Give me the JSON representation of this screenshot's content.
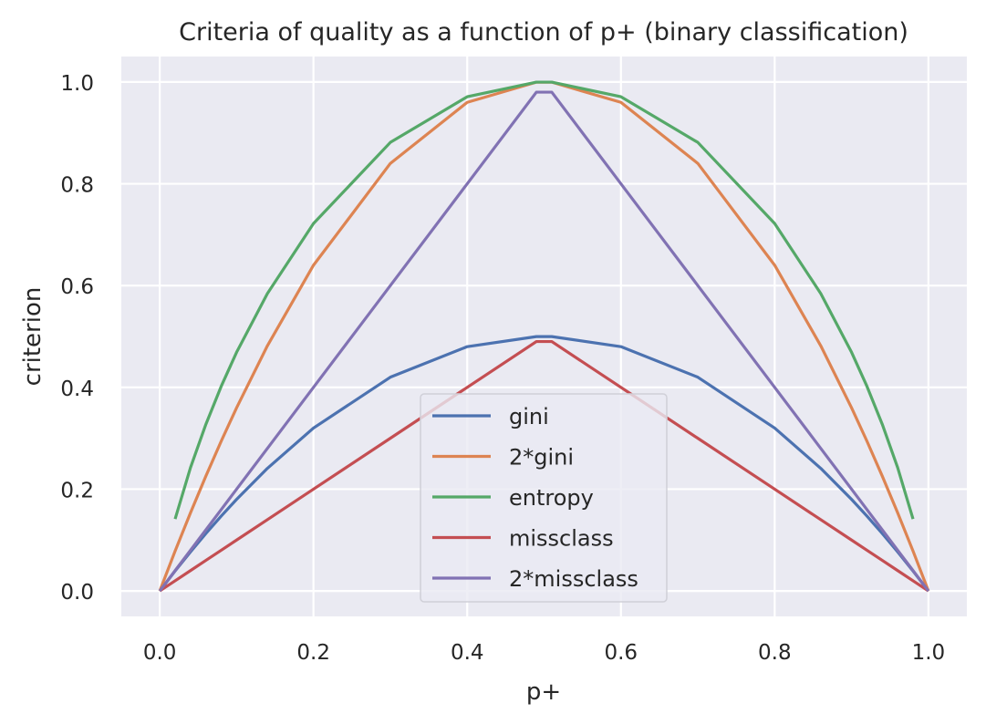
{
  "chart_data": {
    "type": "line",
    "title": "Criteria of quality as a function of p+ (binary classification)",
    "xlabel": "p+",
    "ylabel": "criterion",
    "xlim": [
      -0.05,
      1.05
    ],
    "ylim": [
      -0.05,
      1.05
    ],
    "xticks": [
      "0.0",
      "0.2",
      "0.4",
      "0.6",
      "0.8",
      "1.0"
    ],
    "yticks": [
      "0.0",
      "0.2",
      "0.4",
      "0.6",
      "0.8",
      "1.0"
    ],
    "grid": true,
    "legend_position": "bottom-center",
    "x": [
      0.0,
      0.02,
      0.04,
      0.06,
      0.08,
      0.1,
      0.14,
      0.2,
      0.3,
      0.4,
      0.49,
      0.51,
      0.6,
      0.7,
      0.8,
      0.86,
      0.9,
      0.92,
      0.94,
      0.96,
      0.98,
      1.0
    ],
    "series": [
      {
        "name": "gini",
        "color": "#4c72b0",
        "values": [
          0.0,
          0.0392,
          0.0768,
          0.1128,
          0.1472,
          0.18,
          0.2408,
          0.32,
          0.42,
          0.48,
          0.4998,
          0.4998,
          0.48,
          0.42,
          0.32,
          0.2408,
          0.18,
          0.1472,
          0.1128,
          0.0768,
          0.0392,
          0.0
        ]
      },
      {
        "name": "2*gini",
        "color": "#dd8452",
        "values": [
          0.0,
          0.0784,
          0.1536,
          0.2256,
          0.2944,
          0.36,
          0.4816,
          0.64,
          0.84,
          0.96,
          0.9996,
          0.9996,
          0.96,
          0.84,
          0.64,
          0.4816,
          0.36,
          0.2944,
          0.2256,
          0.1536,
          0.0784,
          0.0
        ]
      },
      {
        "name": "entropy",
        "color": "#55a868",
        "values": [
          null,
          0.1414,
          0.2423,
          0.3274,
          0.4022,
          0.469,
          0.5842,
          0.7219,
          0.8813,
          0.971,
          0.9997,
          0.9997,
          0.971,
          0.8813,
          0.7219,
          0.5842,
          0.469,
          0.4022,
          0.3274,
          0.2423,
          0.1414,
          null
        ]
      },
      {
        "name": "missclass",
        "color": "#c44e52",
        "values": [
          0.0,
          0.02,
          0.04,
          0.06,
          0.08,
          0.1,
          0.14,
          0.2,
          0.3,
          0.4,
          0.49,
          0.49,
          0.4,
          0.3,
          0.2,
          0.14,
          0.1,
          0.08,
          0.06,
          0.04,
          0.02,
          0.0
        ]
      },
      {
        "name": "2*missclass",
        "color": "#8172b3",
        "values": [
          0.0,
          0.04,
          0.08,
          0.12,
          0.16,
          0.2,
          0.28,
          0.4,
          0.6,
          0.8,
          0.98,
          0.98,
          0.8,
          0.6,
          0.4,
          0.28,
          0.2,
          0.16,
          0.12,
          0.08,
          0.04,
          0.0
        ]
      }
    ]
  },
  "colors": {
    "plot_background": "#eaeaf2",
    "grid": "#ffffff",
    "text": "#262626"
  }
}
